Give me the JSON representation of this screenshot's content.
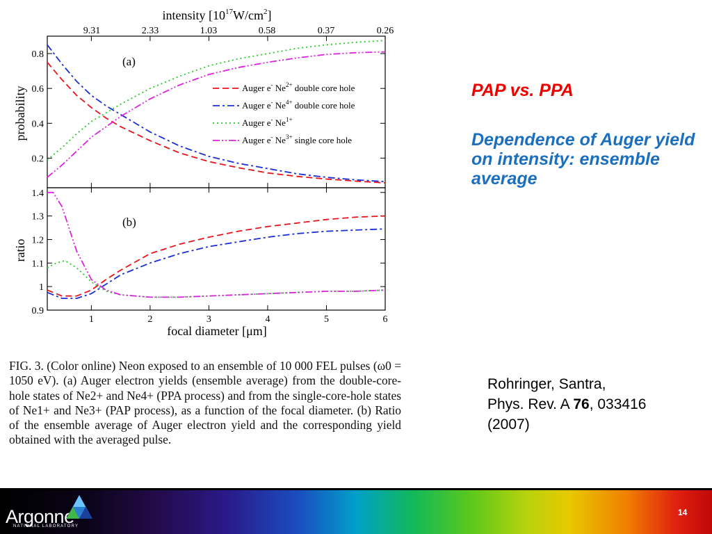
{
  "slide": {
    "title_red": "PAP vs. PPA",
    "title_blue": "Dependence of Auger yield on intensity: ensemble average",
    "reference": {
      "authors": "Rohringer, Santra,",
      "journal": "Phys. Rev. A ",
      "volume": "76",
      "pages": ", 033416 (2007)"
    },
    "page_number": "14",
    "logo": {
      "name": "Argonne",
      "subtitle": "NATIONAL LABORATORY",
      "icon": "argonne-triangle-logo"
    }
  },
  "caption": "FIG. 3. (Color online) Neon exposed to an ensemble of 10 000 FEL pulses (ω0 = 1050 eV). (a) Auger electron yields (ensemble average) from the double-core-hole states of Ne2+ and Ne4+ (PPA process) and from the single-core-hole states of Ne1+ and Ne3+ (PAP process), as a function of the focal diameter. (b) Ratio of the ensemble average of Auger electron yield and the corresponding yield obtained with the averaged pulse.",
  "figure": {
    "top_axis": {
      "label": "intensity [10^17 W/cm^2]",
      "ticks": [
        "9.31",
        "2.33",
        "1.03",
        "0.58",
        "0.37",
        "0.26"
      ]
    },
    "bottom_axis": {
      "label": "focal diameter [μm]",
      "ticks": [
        "1",
        "2",
        "3",
        "4",
        "5",
        "6"
      ]
    },
    "panel_a_label": "(a)",
    "panel_b_label": "(b)"
  },
  "chart_data": [
    {
      "type": "line",
      "panel": "(a)",
      "xlabel": "focal diameter [μm]",
      "ylabel": "probability",
      "xlim": [
        0.25,
        6
      ],
      "ylim": [
        0.03,
        0.9
      ],
      "yticks": [
        0.2,
        0.4,
        0.6,
        0.8
      ],
      "legend_position": "right",
      "series": [
        {
          "name": "Auger e- Ne2+ double core hole",
          "color": "#e8141a",
          "dash": "dashed",
          "x": [
            0.25,
            0.5,
            0.75,
            1,
            1.25,
            1.5,
            2,
            2.5,
            3,
            3.5,
            4,
            4.5,
            5,
            5.5,
            6
          ],
          "y": [
            0.75,
            0.65,
            0.56,
            0.49,
            0.43,
            0.38,
            0.3,
            0.23,
            0.18,
            0.145,
            0.115,
            0.095,
            0.08,
            0.068,
            0.058
          ]
        },
        {
          "name": "Auger e- Ne4+ double core hole",
          "color": "#1a2fd4",
          "dash": "dash-dot",
          "x": [
            0.25,
            0.5,
            0.75,
            1,
            1.25,
            1.5,
            2,
            2.5,
            3,
            3.5,
            4,
            4.5,
            5,
            5.5,
            6
          ],
          "y": [
            0.85,
            0.74,
            0.64,
            0.56,
            0.5,
            0.45,
            0.35,
            0.27,
            0.21,
            0.17,
            0.14,
            0.11,
            0.09,
            0.075,
            0.065
          ]
        },
        {
          "name": "Auger e- Ne1+",
          "color": "#22cc22",
          "dash": "dotted",
          "x": [
            0.25,
            0.5,
            0.75,
            1,
            1.25,
            1.5,
            2,
            2.5,
            3,
            3.5,
            4,
            4.5,
            5,
            5.5,
            6
          ],
          "y": [
            0.19,
            0.26,
            0.34,
            0.41,
            0.46,
            0.51,
            0.6,
            0.67,
            0.73,
            0.77,
            0.8,
            0.83,
            0.85,
            0.865,
            0.875
          ]
        },
        {
          "name": "Auger e- Ne3+ single core hole",
          "color": "#dd22dd",
          "dash": "dash-dot-dot",
          "x": [
            0.25,
            0.5,
            0.75,
            1,
            1.25,
            1.5,
            2,
            2.5,
            3,
            3.5,
            4,
            4.5,
            5,
            5.5,
            6
          ],
          "y": [
            0.09,
            0.16,
            0.24,
            0.32,
            0.38,
            0.44,
            0.54,
            0.62,
            0.68,
            0.72,
            0.75,
            0.775,
            0.795,
            0.805,
            0.81
          ]
        }
      ]
    },
    {
      "type": "line",
      "panel": "(b)",
      "xlabel": "focal diameter [μm]",
      "ylabel": "ratio",
      "xlim": [
        0.25,
        6
      ],
      "ylim": [
        0.9,
        1.42
      ],
      "yticks": [
        0.9,
        1,
        1.1,
        1.2,
        1.3,
        1.4
      ],
      "series": [
        {
          "color": "#e8141a",
          "dash": "dashed",
          "x": [
            0.25,
            0.5,
            0.75,
            1,
            1.25,
            1.5,
            2,
            2.5,
            3,
            3.5,
            4,
            4.5,
            5,
            5.5,
            6
          ],
          "y": [
            0.985,
            0.96,
            0.96,
            0.985,
            1.03,
            1.07,
            1.14,
            1.18,
            1.21,
            1.235,
            1.255,
            1.27,
            1.285,
            1.295,
            1.3
          ]
        },
        {
          "color": "#1a2fd4",
          "dash": "dash-dot",
          "x": [
            0.25,
            0.5,
            0.75,
            1,
            1.25,
            1.5,
            2,
            2.5,
            3,
            3.5,
            4,
            4.5,
            5,
            5.5,
            6
          ],
          "y": [
            0.975,
            0.95,
            0.95,
            0.97,
            1.01,
            1.05,
            1.1,
            1.14,
            1.17,
            1.19,
            1.21,
            1.225,
            1.235,
            1.24,
            1.245
          ]
        },
        {
          "color": "#22cc22",
          "dash": "dotted",
          "x": [
            0.25,
            0.4,
            0.55,
            0.75,
            1,
            1.25,
            1.5,
            2,
            2.5,
            3,
            3.5,
            4,
            4.5,
            5,
            5.5,
            6
          ],
          "y": [
            1.08,
            1.1,
            1.11,
            1.08,
            1.02,
            0.98,
            0.965,
            0.955,
            0.955,
            0.96,
            0.965,
            0.97,
            0.975,
            0.98,
            0.98,
            0.985
          ]
        },
        {
          "color": "#dd22dd",
          "dash": "dash-dot-dot",
          "x": [
            0.25,
            0.35,
            0.5,
            0.75,
            1,
            1.25,
            1.5,
            2,
            2.5,
            3,
            3.5,
            4,
            4.5,
            5,
            5.5,
            6
          ],
          "y": [
            1.4,
            1.4,
            1.34,
            1.15,
            1.03,
            0.985,
            0.965,
            0.955,
            0.955,
            0.96,
            0.965,
            0.97,
            0.975,
            0.98,
            0.98,
            0.985
          ]
        }
      ]
    }
  ]
}
